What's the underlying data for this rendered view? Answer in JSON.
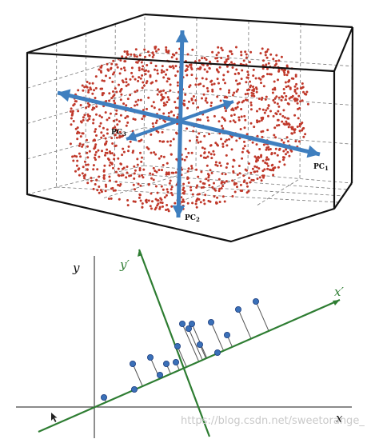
{
  "colors": {
    "box": "#111111",
    "box_dashed": "#777777",
    "cloud_point": "#c0392b",
    "pc_axis": "#3f7fbf",
    "plot_axis": "#444444",
    "rotated_axis": "#2e7d32",
    "projection_point": "#3a70b8",
    "projection_point_edge": "#1f3f80",
    "watermark": "#c9c9c9"
  },
  "pca_3d": {
    "pc1_label": {
      "text": "PC",
      "subscript": "1"
    },
    "pc2_label": {
      "text": "PC",
      "subscript": "2"
    },
    "pc3_label": {
      "text": "PC",
      "subscript": "3"
    }
  },
  "projection_2d": {
    "x_label": "x",
    "y_label": "y",
    "x_prime_label": "x′",
    "y_prime_label": "y′",
    "points": [
      {
        "x": 0.3,
        "y": 0.3
      },
      {
        "x": 1.2,
        "y": 1.35
      },
      {
        "x": 1.25,
        "y": 0.55
      },
      {
        "x": 1.75,
        "y": 1.55
      },
      {
        "x": 2.05,
        "y": 1.0
      },
      {
        "x": 2.25,
        "y": 1.35
      },
      {
        "x": 2.55,
        "y": 1.4
      },
      {
        "x": 2.6,
        "y": 1.9
      },
      {
        "x": 2.95,
        "y": 2.45
      },
      {
        "x": 2.75,
        "y": 2.6
      },
      {
        "x": 3.05,
        "y": 2.6
      },
      {
        "x": 3.3,
        "y": 1.95
      },
      {
        "x": 3.65,
        "y": 2.65
      },
      {
        "x": 3.85,
        "y": 1.7
      },
      {
        "x": 4.5,
        "y": 3.05
      },
      {
        "x": 5.05,
        "y": 3.3
      },
      {
        "x": 4.15,
        "y": 2.25
      }
    ]
  },
  "watermark": "https://blog.csdn.net/sweetorange_"
}
